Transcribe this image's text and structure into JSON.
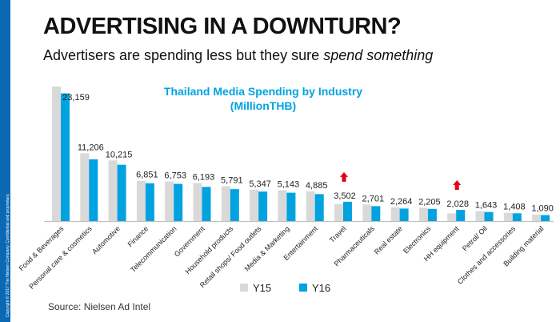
{
  "slide": {
    "title": "ADVERTISING IN A DOWNTURN?",
    "subtitle_plain": "Advertisers are spending less but they sure ",
    "subtitle_italic": "spend something",
    "side_note": "Copyright © 2017 The Nielsen Company. Confidential and proprietary.",
    "source": "Source: Nielsen Ad Intel"
  },
  "chart_data": {
    "type": "bar",
    "title": "Thailand Media Spending by Industry",
    "subtitle": "(MillionTHB)",
    "categories": [
      "Food & Beverages",
      "Personal care & cosmetics",
      "Automotive",
      "Finance",
      "Telecommunication",
      "Government",
      "Household products",
      "Retail shops/ Food outlets",
      "Media & Marketing",
      "Entertainment",
      "Travel",
      "Pharmaceuticals",
      "Real estate",
      "Electronics",
      "HH equipment",
      "Petrol/ Oil",
      "Clothes and accessories",
      "Building material"
    ],
    "series": [
      {
        "name": "Y15",
        "color": "#d9d9d9",
        "values": [
          24400,
          12300,
          11000,
          7300,
          7200,
          6900,
          6300,
          5700,
          5600,
          5400,
          3100,
          3000,
          2500,
          2400,
          1400,
          1800,
          1500,
          1200
        ]
      },
      {
        "name": "Y16",
        "color": "#00a3e0",
        "values": [
          23159,
          11206,
          10215,
          6851,
          6753,
          6193,
          5791,
          5347,
          5143,
          4885,
          3502,
          2701,
          2264,
          2205,
          2028,
          1643,
          1408,
          1090
        ]
      }
    ],
    "value_labels": [
      "23,159",
      "11,206",
      "10,215",
      "6,851",
      "6,753",
      "6,193",
      "5,791",
      "5,347",
      "5,143",
      "4,885",
      "3,502",
      "2,701",
      "2,264",
      "2,205",
      "2,028",
      "1,643",
      "1,408",
      "1,090"
    ],
    "increase_arrows": [
      "Travel",
      "HH equipment"
    ],
    "arrow_color": "#e3001b",
    "ylim": [
      0,
      24400
    ],
    "grid": false,
    "legend_position": "bottom-center"
  }
}
